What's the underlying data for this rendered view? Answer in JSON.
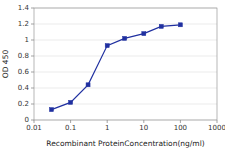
{
  "chart_data": {
    "type": "line",
    "xlabel": "Recombinant ProteinConcentration(ng/ml)",
    "ylabel": "OD 450",
    "x": [
      0.03,
      0.1,
      0.3,
      1,
      3,
      10,
      30,
      100
    ],
    "values": [
      0.13,
      0.22,
      0.44,
      0.93,
      1.02,
      1.08,
      1.17,
      1.19
    ],
    "color": "#2030a0",
    "marker": "square",
    "log": "x",
    "xlim": [
      0.01,
      1000
    ],
    "ylim": [
      0,
      1.4
    ],
    "xticks": [
      0.01,
      0.1,
      1,
      10,
      100,
      1000
    ],
    "yticks": [
      0,
      0.2,
      0.4,
      0.6,
      0.8,
      1.0,
      1.2,
      1.4
    ],
    "grid": true
  }
}
